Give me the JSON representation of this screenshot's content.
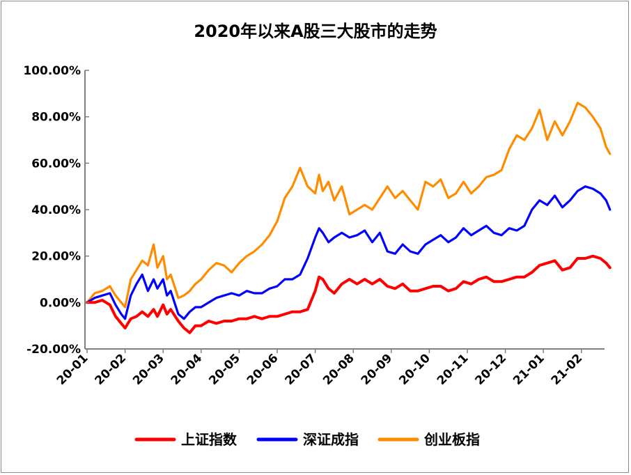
{
  "chart_data": {
    "type": "line",
    "title": "2020年以来A股三大股市的走势",
    "xlabel": "",
    "ylabel": "",
    "ylim": [
      -20,
      100
    ],
    "yticks": [
      100,
      80,
      60,
      40,
      20,
      0,
      -20
    ],
    "ytick_labels": [
      "100.00%",
      "80.00%",
      "60.00%",
      "40.00%",
      "20.00%",
      "0.00%",
      "-20.00%"
    ],
    "xticks": [
      0,
      1,
      2,
      3,
      4,
      5,
      6,
      7,
      8,
      9,
      10,
      11,
      12,
      13
    ],
    "xtick_labels": [
      "20-01",
      "20-02",
      "20-03",
      "20-04",
      "20-05",
      "20-06",
      "20-07",
      "20-08",
      "20-09",
      "20-10",
      "20-11",
      "20-12",
      "21-01",
      "21-02"
    ],
    "xlim": [
      0,
      13.8
    ],
    "grid": false,
    "legend_position": "bottom",
    "series": [
      {
        "name": "上证指数",
        "color": "#ff0000",
        "x": [
          0,
          0.2,
          0.4,
          0.6,
          0.75,
          0.9,
          1.0,
          1.15,
          1.3,
          1.45,
          1.6,
          1.75,
          1.85,
          2.0,
          2.1,
          2.2,
          2.4,
          2.55,
          2.7,
          2.85,
          3.0,
          3.2,
          3.4,
          3.6,
          3.8,
          4.0,
          4.2,
          4.4,
          4.6,
          4.8,
          5.0,
          5.2,
          5.4,
          5.6,
          5.8,
          6.0,
          6.1,
          6.2,
          6.35,
          6.5,
          6.7,
          6.9,
          7.1,
          7.3,
          7.5,
          7.7,
          7.9,
          8.1,
          8.3,
          8.5,
          8.7,
          8.9,
          9.1,
          9.3,
          9.5,
          9.7,
          9.9,
          10.1,
          10.3,
          10.5,
          10.7,
          10.9,
          11.1,
          11.3,
          11.5,
          11.7,
          11.9,
          12.1,
          12.3,
          12.5,
          12.7,
          12.9,
          13.1,
          13.3,
          13.5,
          13.65,
          13.75
        ],
        "values": [
          0,
          0,
          1,
          -1,
          -6,
          -9,
          -11,
          -7,
          -6,
          -4,
          -6,
          -3,
          -6,
          -1,
          -5,
          -3,
          -8,
          -11,
          -13,
          -10,
          -10,
          -8,
          -9,
          -8,
          -8,
          -7,
          -7,
          -6,
          -7,
          -6,
          -6,
          -5,
          -4,
          -4,
          -3,
          5,
          11,
          10,
          6,
          4,
          8,
          10,
          8,
          10,
          8,
          10,
          7,
          6,
          8,
          5,
          5,
          6,
          7,
          7,
          5,
          6,
          9,
          8,
          10,
          11,
          9,
          9,
          10,
          11,
          11,
          13,
          16,
          17,
          18,
          14,
          15,
          19,
          19,
          20,
          19,
          17,
          15
        ]
      },
      {
        "name": "深证成指",
        "color": "#0000ff",
        "x": [
          0,
          0.2,
          0.4,
          0.6,
          0.75,
          0.9,
          1.0,
          1.15,
          1.3,
          1.45,
          1.6,
          1.75,
          1.85,
          2.0,
          2.1,
          2.2,
          2.4,
          2.55,
          2.7,
          2.85,
          3.0,
          3.2,
          3.4,
          3.6,
          3.8,
          4.0,
          4.2,
          4.4,
          4.6,
          4.8,
          5.0,
          5.2,
          5.4,
          5.6,
          5.8,
          6.0,
          6.1,
          6.2,
          6.35,
          6.5,
          6.7,
          6.9,
          7.1,
          7.3,
          7.5,
          7.7,
          7.9,
          8.1,
          8.3,
          8.5,
          8.7,
          8.9,
          9.1,
          9.3,
          9.5,
          9.7,
          9.9,
          10.1,
          10.3,
          10.5,
          10.7,
          10.9,
          11.1,
          11.3,
          11.5,
          11.7,
          11.9,
          12.1,
          12.3,
          12.5,
          12.7,
          12.9,
          13.1,
          13.3,
          13.5,
          13.65,
          13.75
        ],
        "values": [
          0,
          2,
          3,
          4,
          -1,
          -5,
          -7,
          3,
          8,
          12,
          5,
          10,
          6,
          10,
          3,
          5,
          -5,
          -7,
          -4,
          -2,
          -2,
          0,
          2,
          3,
          4,
          3,
          5,
          4,
          4,
          6,
          7,
          10,
          10,
          12,
          19,
          28,
          32,
          30,
          26,
          28,
          30,
          28,
          29,
          31,
          26,
          30,
          22,
          21,
          25,
          22,
          21,
          25,
          27,
          29,
          26,
          28,
          32,
          29,
          31,
          33,
          30,
          29,
          32,
          31,
          33,
          40,
          44,
          42,
          46,
          41,
          44,
          48,
          50,
          49,
          47,
          44,
          40
        ]
      },
      {
        "name": "创业板指",
        "color": "#ff8c00",
        "x": [
          0,
          0.2,
          0.4,
          0.6,
          0.75,
          0.9,
          1.0,
          1.15,
          1.3,
          1.45,
          1.6,
          1.75,
          1.85,
          2.0,
          2.1,
          2.2,
          2.4,
          2.55,
          2.7,
          2.85,
          3.0,
          3.2,
          3.4,
          3.6,
          3.8,
          4.0,
          4.2,
          4.4,
          4.6,
          4.8,
          5.0,
          5.2,
          5.4,
          5.6,
          5.8,
          6.0,
          6.1,
          6.2,
          6.35,
          6.5,
          6.7,
          6.9,
          7.1,
          7.3,
          7.5,
          7.7,
          7.9,
          8.1,
          8.3,
          8.5,
          8.7,
          8.9,
          9.1,
          9.3,
          9.5,
          9.7,
          9.9,
          10.1,
          10.3,
          10.5,
          10.7,
          10.9,
          11.1,
          11.3,
          11.5,
          11.7,
          11.9,
          12.1,
          12.3,
          12.5,
          12.7,
          12.9,
          13.1,
          13.3,
          13.5,
          13.65,
          13.75
        ],
        "values": [
          0,
          4,
          5,
          7,
          3,
          0,
          -2,
          10,
          14,
          18,
          16,
          25,
          15,
          20,
          10,
          12,
          2,
          3,
          5,
          8,
          10,
          14,
          17,
          16,
          13,
          17,
          20,
          22,
          25,
          29,
          35,
          45,
          50,
          58,
          50,
          47,
          55,
          48,
          52,
          44,
          50,
          38,
          40,
          42,
          40,
          45,
          50,
          45,
          48,
          44,
          40,
          52,
          50,
          53,
          45,
          47,
          52,
          47,
          50,
          54,
          55,
          57,
          66,
          72,
          70,
          75,
          83,
          70,
          78,
          72,
          78,
          86,
          84,
          80,
          75,
          67,
          64
        ]
      }
    ]
  }
}
